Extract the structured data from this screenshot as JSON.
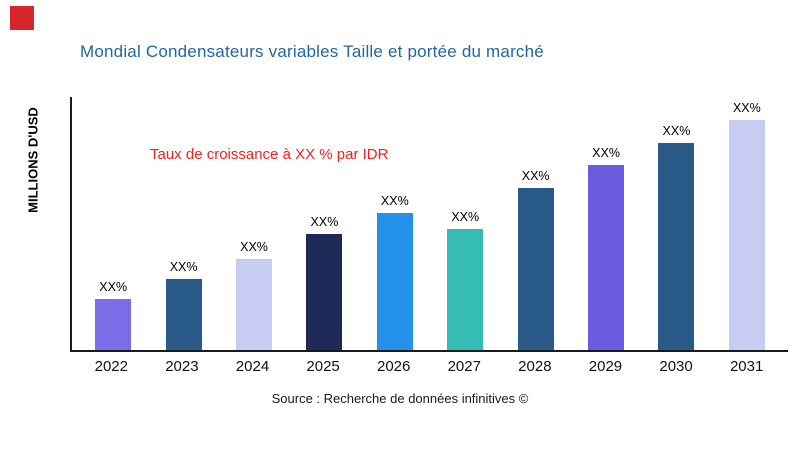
{
  "header": {
    "title": "Mondial Condensateurs variables Taille et portée du marché"
  },
  "colors": {
    "title_accent": "#2366A0",
    "annotation_red": "#EE2222",
    "logo_red": "#D6252B",
    "axis": "#1a1a1a"
  },
  "annotation": {
    "growth_text": "Taux de croissance à XX % par IDR"
  },
  "footer": {
    "source": "Source : Recherche de données infinitives ©"
  },
  "chart_data": {
    "type": "bar",
    "title": "Mondial Condensateurs variables Taille et portée du marché",
    "categories": [
      "2022",
      "2023",
      "2024",
      "2025",
      "2026",
      "2027",
      "2028",
      "2029",
      "2030",
      "2031"
    ],
    "values": [
      20,
      28,
      36,
      46,
      54,
      48,
      64,
      73,
      82,
      91
    ],
    "value_labels": [
      "XX%",
      "XX%",
      "XX%",
      "XX%",
      "XX%",
      "XX%",
      "XX%",
      "XX%",
      "XX%",
      "XX%"
    ],
    "bar_colors": [
      "#7B6CE8",
      "#2A5A87",
      "#C7CCF2",
      "#1E2B58",
      "#2492EA",
      "#35BCB4",
      "#2A5A87",
      "#6A5BDF",
      "#2A5A87",
      "#C7CCF2"
    ],
    "xlabel": "",
    "ylabel": "MILLIONS D'USD",
    "ylim": [
      0,
      100
    ],
    "grid": false,
    "legend": "none",
    "annotation": "Taux de croissance à XX % par IDR"
  }
}
